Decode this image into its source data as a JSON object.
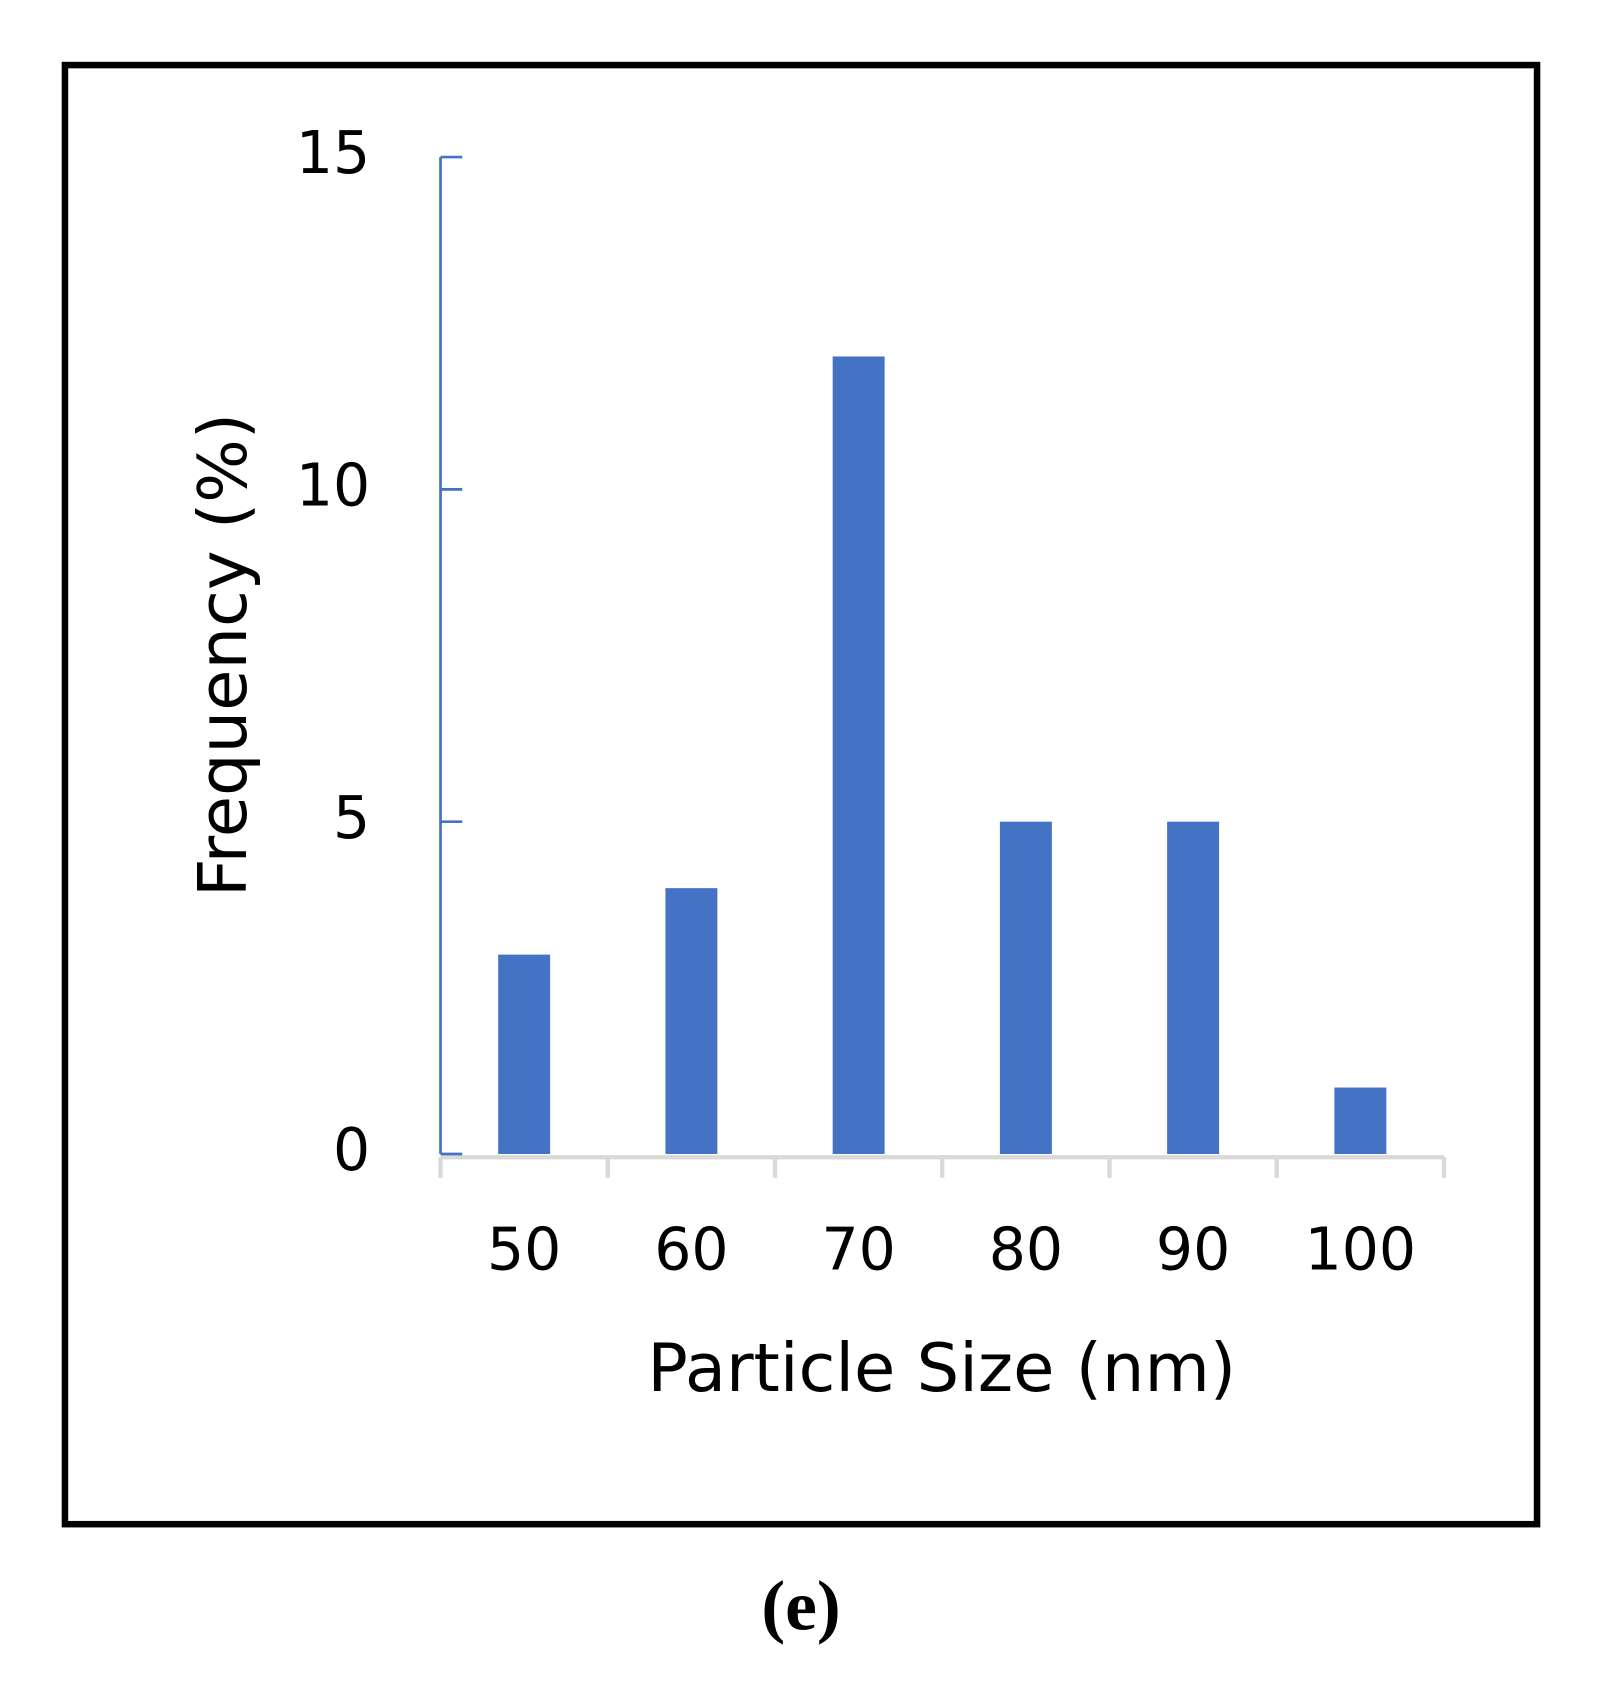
{
  "chart_data": {
    "type": "bar",
    "x_label": "Particle Size (nm)",
    "y_label": "Frequency (%)",
    "categories": [
      "50",
      "60",
      "70",
      "80",
      "90",
      "100"
    ],
    "values": [
      3,
      4,
      12,
      5,
      5,
      1
    ],
    "color": "#4472c4",
    "ylim": [
      0,
      15
    ],
    "yticks": [
      0,
      5,
      10,
      15
    ],
    "grid": false,
    "caption": "(e)"
  }
}
